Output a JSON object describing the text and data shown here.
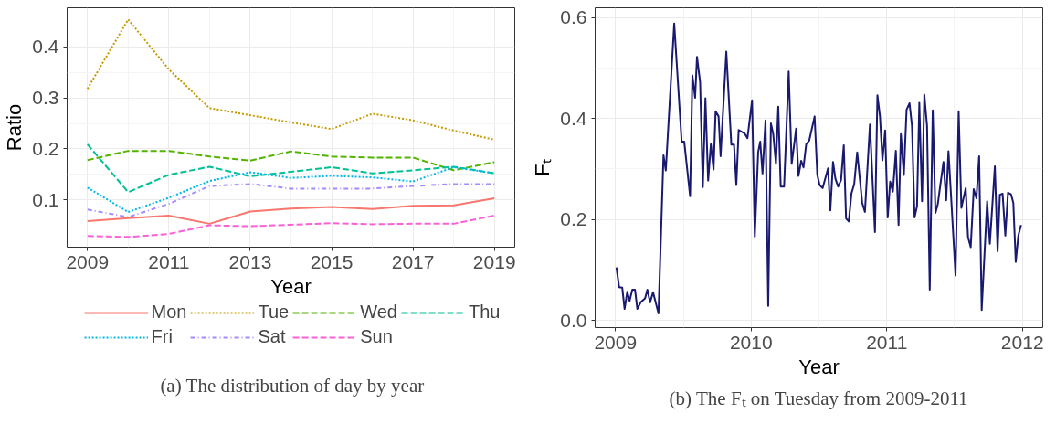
{
  "chart_data": [
    {
      "type": "line",
      "xlabel": "Year",
      "ylabel": "Ratio",
      "x": [
        2009,
        2010,
        2011,
        2012,
        2013,
        2014,
        2015,
        2016,
        2017,
        2018,
        2019
      ],
      "xlim": [
        2008.5,
        2019.5
      ],
      "ylim": [
        0.007,
        0.477
      ],
      "xticks": [
        2009,
        2011,
        2013,
        2015,
        2017,
        2019
      ],
      "yticks": [
        0.1,
        0.2,
        0.3,
        0.4
      ],
      "grid": true,
      "legend": "bottom",
      "series": [
        {
          "name": "Mon",
          "color": "#f8766d",
          "line_style": "solid",
          "values": [
            0.058,
            0.064,
            0.069,
            0.053,
            0.077,
            0.083,
            0.086,
            0.082,
            0.088,
            0.089,
            0.103
          ]
        },
        {
          "name": "Tue",
          "color": "#c49a00",
          "line_style": "dotted",
          "values": [
            0.318,
            0.454,
            0.356,
            0.28,
            0.266,
            0.252,
            0.239,
            0.269,
            0.256,
            0.236,
            0.218
          ]
        },
        {
          "name": "Wed",
          "color": "#53b400",
          "line_style": "dashed",
          "values": [
            0.178,
            0.196,
            0.196,
            0.185,
            0.177,
            0.195,
            0.185,
            0.183,
            0.183,
            0.158,
            0.174
          ]
        },
        {
          "name": "Thu",
          "color": "#00c094",
          "line_style": "dashed",
          "values": [
            0.209,
            0.115,
            0.149,
            0.165,
            0.146,
            0.155,
            0.164,
            0.152,
            0.158,
            0.165,
            0.152
          ]
        },
        {
          "name": "Fri",
          "color": "#00b6eb",
          "line_style": "dotted",
          "values": [
            0.124,
            0.076,
            0.104,
            0.137,
            0.154,
            0.143,
            0.147,
            0.144,
            0.136,
            0.164,
            0.152
          ]
        },
        {
          "name": "Sat",
          "color": "#a58aff",
          "line_style": "dashdot",
          "values": [
            0.081,
            0.066,
            0.092,
            0.127,
            0.131,
            0.122,
            0.122,
            0.122,
            0.127,
            0.131,
            0.131
          ]
        },
        {
          "name": "Sun",
          "color": "#fb61d7",
          "line_style": "dashed",
          "values": [
            0.029,
            0.027,
            0.033,
            0.05,
            0.048,
            0.051,
            0.054,
            0.052,
            0.053,
            0.053,
            0.069
          ]
        }
      ],
      "annotations": [
        "(a) The distribution of day by year"
      ]
    },
    {
      "type": "line",
      "xlabel": "Year",
      "ylabel": "Fₜ",
      "xlim": [
        2008.85,
        2012.15
      ],
      "ylim": [
        -0.014,
        0.619
      ],
      "xticks": [
        2009,
        2010,
        2011,
        2012
      ],
      "yticks": [
        {
          "value": 0,
          "label": "0.0"
        },
        0.2,
        0.4,
        0.6
      ],
      "grid": true,
      "x": [
        2009.007,
        2009.027,
        2009.05,
        2009.067,
        2009.087,
        2009.104,
        2009.124,
        2009.144,
        2009.161,
        2009.186,
        2009.218,
        2009.235,
        2009.255,
        2009.277,
        2009.317,
        2009.354,
        2009.371,
        2009.433,
        2009.488,
        2009.507,
        2009.55,
        2009.567,
        2009.587,
        2009.601,
        2009.624,
        2009.644,
        2009.663,
        2009.683,
        2009.703,
        2009.723,
        2009.738,
        2009.76,
        2009.775,
        2009.817,
        2009.854,
        2009.874,
        2009.891,
        2009.908,
        2009.953,
        2009.973,
        2010.007,
        2010.027,
        2010.052,
        2010.067,
        2010.084,
        2010.106,
        2010.126,
        2010.146,
        2010.163,
        2010.183,
        2010.2,
        2010.218,
        2010.243,
        2010.277,
        2010.299,
        2010.332,
        2010.349,
        2010.369,
        2010.386,
        2010.406,
        2010.428,
        2010.468,
        2010.488,
        2010.505,
        2010.527,
        2010.567,
        2010.584,
        2010.604,
        2010.621,
        2010.641,
        2010.663,
        2010.683,
        2010.7,
        2010.72,
        2010.74,
        2010.76,
        2010.782,
        2010.819,
        2010.839,
        2010.876,
        2010.913,
        2010.931,
        2010.95,
        2010.968,
        2010.988,
        2011.007,
        2011.025,
        2011.045,
        2011.067,
        2011.087,
        2011.104,
        2011.126,
        2011.146,
        2011.168,
        2011.186,
        2011.205,
        2011.223,
        2011.24,
        2011.26,
        2011.277,
        2011.297,
        2011.317,
        2011.339,
        2011.359,
        2011.376,
        2011.418,
        2011.438,
        2011.455,
        2011.475,
        2011.507,
        2011.53,
        2011.55,
        2011.582,
        2011.599,
        2011.619,
        2011.641,
        2011.661,
        2011.681,
        2011.7,
        2011.74,
        2011.76,
        2011.797,
        2011.817,
        2011.834,
        2011.854,
        2011.874,
        2011.894,
        2011.916,
        2011.933,
        2011.951,
        2011.97,
        2011.99
      ],
      "series": [
        {
          "color": "#191970",
          "values": [
            0.105,
            0.066,
            0.065,
            0.023,
            0.057,
            0.039,
            0.061,
            0.061,
            0.023,
            0.036,
            0.044,
            0.061,
            0.036,
            0.056,
            0.014,
            0.327,
            0.297,
            0.588,
            0.354,
            0.354,
            0.246,
            0.485,
            0.441,
            0.522,
            0.472,
            0.264,
            0.44,
            0.277,
            0.349,
            0.299,
            0.414,
            0.404,
            0.325,
            0.532,
            0.348,
            0.348,
            0.268,
            0.377,
            0.37,
            0.361,
            0.436,
            0.166,
            0.334,
            0.354,
            0.291,
            0.396,
            0.029,
            0.39,
            0.369,
            0.31,
            0.423,
            0.265,
            0.265,
            0.493,
            0.31,
            0.38,
            0.286,
            0.316,
            0.303,
            0.349,
            0.356,
            0.404,
            0.288,
            0.268,
            0.262,
            0.301,
            0.218,
            0.314,
            0.281,
            0.265,
            0.278,
            0.347,
            0.202,
            0.196,
            0.252,
            0.27,
            0.333,
            0.233,
            0.215,
            0.388,
            0.175,
            0.446,
            0.404,
            0.317,
            0.376,
            0.204,
            0.275,
            0.255,
            0.336,
            0.189,
            0.369,
            0.288,
            0.417,
            0.43,
            0.385,
            0.204,
            0.226,
            0.431,
            0.236,
            0.447,
            0.385,
            0.061,
            0.416,
            0.213,
            0.23,
            0.314,
            0.238,
            0.335,
            0.242,
            0.089,
            0.414,
            0.223,
            0.262,
            0.165,
            0.145,
            0.26,
            0.242,
            0.325,
            0.021,
            0.236,
            0.152,
            0.305,
            0.137,
            0.249,
            0.251,
            0.168,
            0.253,
            0.25,
            0.233,
            0.116,
            0.168,
            0.189
          ]
        }
      ],
      "annotations": [
        "(b) The Fₜ on Tuesday from 2009-2011"
      ]
    }
  ]
}
